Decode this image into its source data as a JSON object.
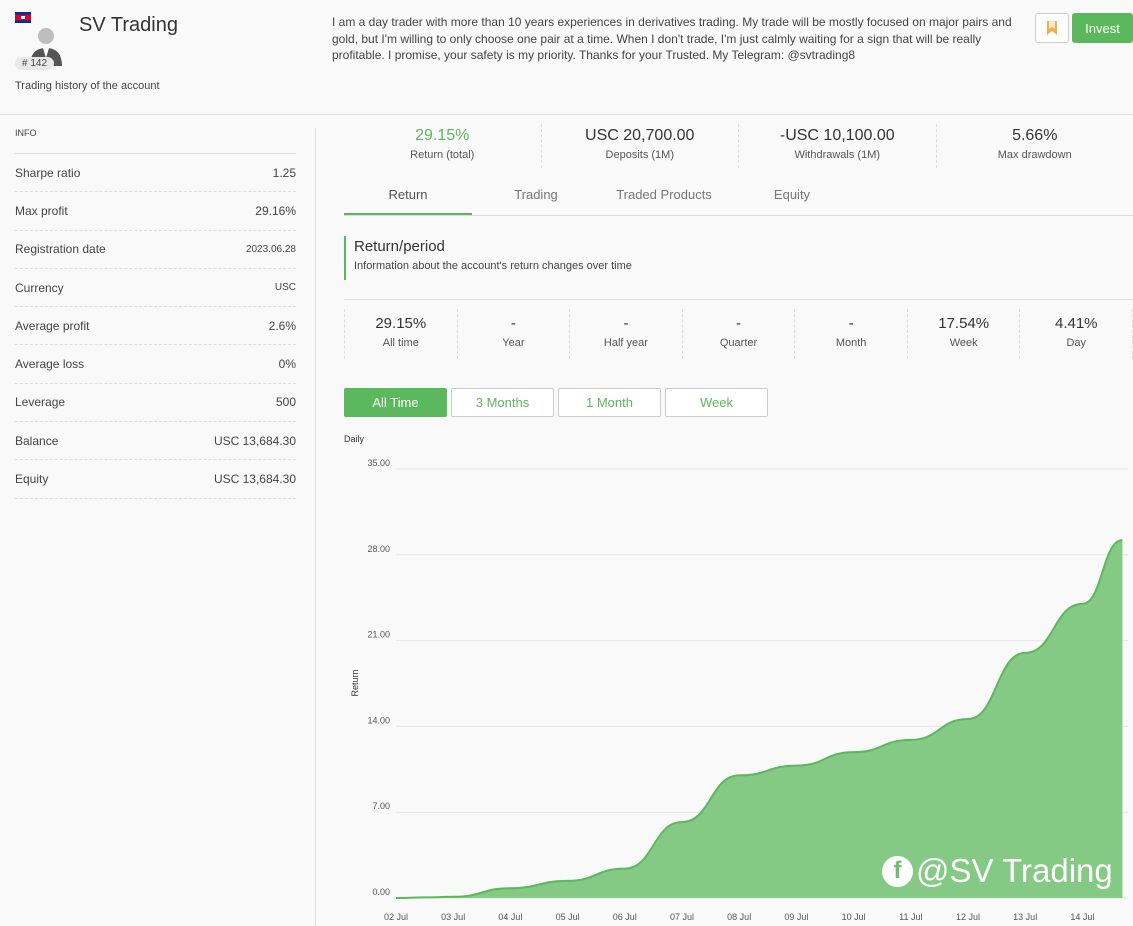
{
  "header": {
    "account_name": "SV Trading",
    "rank": "# 142",
    "history_link": "Trading history of the account",
    "bio": "I am a day trader with more than 10 years experiences in derivatives trading. My trade will be mostly focused on major pairs and gold, but I'm willing to only choose one pair at a time. When I don't trade, I'm just calmly waiting for a sign that will be really profitable. I promise, your safety is my priority. Thanks for your Trusted. My Telegram: @svtrading8",
    "invest_label": "Invest",
    "bookmark_icon": "bookmark-icon",
    "flag_icon": "cambodia-flag-icon"
  },
  "sidebar": {
    "title": "INFO",
    "rows": [
      {
        "label": "Sharpe ratio",
        "value": "1.25"
      },
      {
        "label": "Max profit",
        "value": "29.16%"
      },
      {
        "label": "Registration date",
        "value": "2023.06.28"
      },
      {
        "label": "Currency",
        "value": "USC"
      },
      {
        "label": "Average profit",
        "value": "2.6%"
      },
      {
        "label": "Average loss",
        "value": "0%"
      },
      {
        "label": "Leverage",
        "value": "500"
      },
      {
        "label": "Balance",
        "value": "USC 13,684.30"
      },
      {
        "label": "Equity",
        "value": "USC 13,684.30"
      }
    ]
  },
  "stats": [
    {
      "value": "29.15%",
      "label": "Return (total)"
    },
    {
      "value": "USC 20,700.00",
      "label": "Deposits (1M)"
    },
    {
      "value": "-USC 10,100.00",
      "label": "Withdrawals (1M)"
    },
    {
      "value": "5.66%",
      "label": "Max drawdown"
    }
  ],
  "tabs": [
    {
      "label": "Return"
    },
    {
      "label": "Trading"
    },
    {
      "label": "Traded Products"
    },
    {
      "label": "Equity"
    }
  ],
  "section": {
    "title": "Return/period",
    "subtitle": "Information about the account's return changes over time"
  },
  "periods": [
    {
      "value": "29.15%",
      "label": "All time"
    },
    {
      "value": "-",
      "label": "Year"
    },
    {
      "value": "-",
      "label": "Half year"
    },
    {
      "value": "-",
      "label": "Quarter"
    },
    {
      "value": "-",
      "label": "Month"
    },
    {
      "value": "17.54%",
      "label": "Week"
    },
    {
      "value": "4.41%",
      "label": "Day"
    }
  ],
  "ranges": [
    {
      "label": "All Time"
    },
    {
      "label": "3 Months"
    },
    {
      "label": "1 Month"
    },
    {
      "label": "Week"
    }
  ],
  "watermark": "@SV Trading",
  "colors": {
    "accent": "#5cb85c",
    "area": "#84c984"
  },
  "chart_data": {
    "type": "area",
    "title": "Daily",
    "ylabel": "Return",
    "ylim": [
      0,
      35
    ],
    "yticks": [
      "0.00",
      "7.00",
      "14.00",
      "21.00",
      "28.00",
      "35.00"
    ],
    "categories": [
      "02 Jul",
      "03 Jul",
      "04 Jul",
      "05 Jul",
      "06 Jul",
      "07 Jul",
      "08 Jul",
      "09 Jul",
      "10 Jul",
      "11 Jul",
      "12 Jul",
      "13 Jul",
      "14 Jul"
    ],
    "x": [
      0,
      0.5,
      1,
      2,
      3,
      4,
      5,
      6,
      7,
      8,
      9,
      10,
      11,
      12,
      12.7
    ],
    "values": [
      0,
      0.05,
      0.1,
      0.8,
      1.4,
      2.4,
      6.2,
      10,
      10.8,
      11.9,
      12.9,
      14.6,
      20,
      24,
      29.2
    ]
  }
}
